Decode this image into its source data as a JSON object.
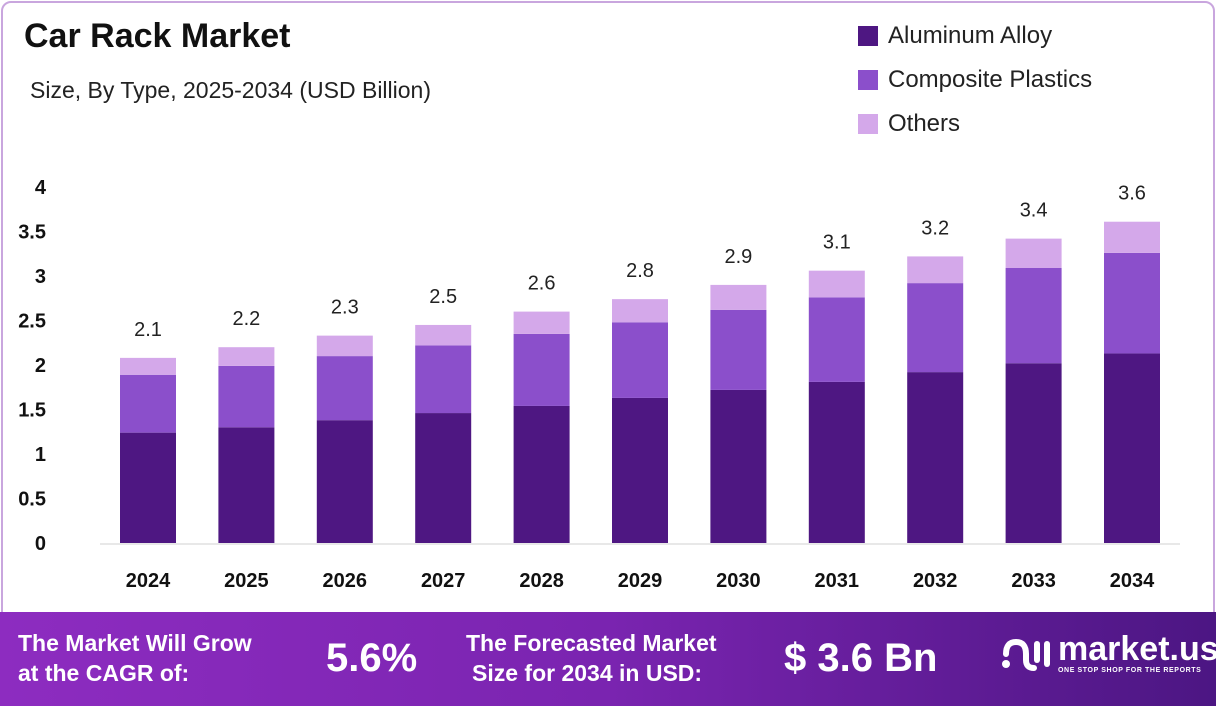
{
  "chart_data": {
    "type": "bar",
    "stacked": true,
    "title": "Car Rack Market",
    "subtitle": "Size, By Type, 2025-2034 (USD Billion)",
    "categories": [
      "2024",
      "2025",
      "2026",
      "2027",
      "2028",
      "2029",
      "2030",
      "2031",
      "2032",
      "2033",
      "2034"
    ],
    "series": [
      {
        "name": "Aluminum Alloy",
        "color": "#4e1782",
        "values": [
          1.24,
          1.3,
          1.38,
          1.46,
          1.54,
          1.63,
          1.72,
          1.81,
          1.92,
          2.02,
          2.13
        ]
      },
      {
        "name": "Composite Plastics",
        "color": "#8b4fcb",
        "values": [
          0.65,
          0.69,
          0.72,
          0.76,
          0.81,
          0.85,
          0.9,
          0.95,
          1.0,
          1.07,
          1.13
        ]
      },
      {
        "name": "Others",
        "color": "#d4a8ea",
        "values": [
          0.19,
          0.21,
          0.23,
          0.23,
          0.25,
          0.26,
          0.28,
          0.3,
          0.3,
          0.33,
          0.35
        ]
      }
    ],
    "totals": [
      "2.1",
      "2.2",
      "2.3",
      "2.5",
      "2.6",
      "2.8",
      "2.9",
      "3.1",
      "3.2",
      "3.4",
      "3.6"
    ],
    "yticks": [
      "0",
      "0.5",
      "1",
      "1.5",
      "2",
      "2.5",
      "3",
      "3.5",
      "4"
    ],
    "ylim": [
      0,
      4
    ],
    "legend": "top-right",
    "grid": false
  },
  "footer": {
    "cagr_label_1": "The Market Will Grow",
    "cagr_label_2": "at the CAGR of:",
    "cagr_value": "5.6%",
    "forecast_label_1": "The Forecasted Market",
    "forecast_label_2": "Size for 2034 in USD:",
    "forecast_value": "$ 3.6 Bn",
    "logo_text": "market.us",
    "logo_tagline": "ONE STOP SHOP FOR THE REPORTS"
  }
}
